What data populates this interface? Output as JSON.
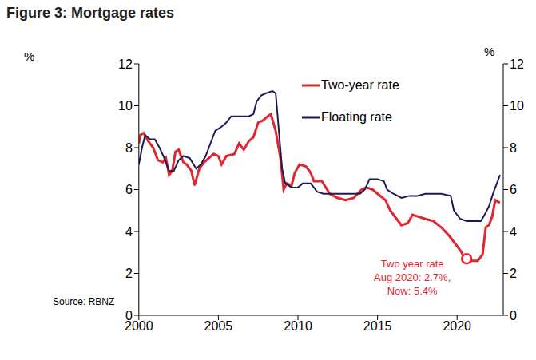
{
  "chart_data": {
    "type": "line",
    "title": "Figure 3: Mortgage rates",
    "y_label": "%",
    "y2_label": "%",
    "source": "Source: RBNZ",
    "xlim": [
      2000,
      2022.9
    ],
    "xticks": [
      2000,
      2005,
      2010,
      2015,
      2020
    ],
    "ylim": [
      0,
      12
    ],
    "yticks": [
      0,
      2,
      4,
      6,
      8,
      10,
      12
    ],
    "y2lim": [
      0,
      12
    ],
    "y2ticks": [
      0,
      2,
      4,
      6,
      8,
      10,
      12
    ],
    "legend": "upper right",
    "grid": false,
    "series": [
      {
        "name": "Two-year rate",
        "color": "#e0262e",
        "x": [
          2000.0,
          2000.1,
          2000.3,
          2000.6,
          2000.9,
          2001.2,
          2001.5,
          2001.7,
          2001.9,
          2002.1,
          2002.3,
          2002.5,
          2002.8,
          2003.0,
          2003.3,
          2003.5,
          2003.8,
          2004.1,
          2004.4,
          2004.7,
          2005.0,
          2005.2,
          2005.5,
          2006.0,
          2006.3,
          2006.6,
          2006.9,
          2007.2,
          2007.5,
          2007.8,
          2008.1,
          2008.3,
          2008.6,
          2008.9,
          2009.1,
          2009.3,
          2009.6,
          2009.8,
          2010.1,
          2010.5,
          2010.8,
          2011.0,
          2011.5,
          2012.0,
          2012.5,
          2013.0,
          2013.5,
          2014.0,
          2014.3,
          2014.7,
          2015.0,
          2015.5,
          2015.8,
          2016.2,
          2016.5,
          2016.9,
          2017.2,
          2017.6,
          2018.0,
          2018.5,
          2019.0,
          2019.5,
          2019.9,
          2020.2,
          2020.5,
          2020.9,
          2021.3,
          2021.6,
          2021.8,
          2022.0,
          2022.2,
          2022.4,
          2022.6,
          2022.7
        ],
        "values": [
          8.2,
          8.6,
          8.7,
          8.3,
          8.0,
          7.4,
          7.3,
          7.5,
          6.7,
          6.9,
          7.8,
          7.9,
          7.3,
          7.2,
          6.9,
          6.2,
          7.0,
          7.3,
          7.5,
          7.7,
          7.6,
          7.2,
          7.6,
          7.7,
          8.2,
          7.9,
          8.3,
          8.5,
          9.2,
          9.3,
          9.5,
          9.6,
          8.8,
          7.5,
          6.0,
          6.3,
          6.2,
          6.8,
          7.2,
          7.1,
          6.8,
          6.4,
          6.4,
          5.8,
          5.6,
          5.5,
          5.6,
          6.0,
          6.1,
          6.0,
          5.8,
          5.5,
          5.0,
          4.6,
          4.3,
          4.4,
          4.8,
          4.7,
          4.6,
          4.5,
          4.2,
          3.8,
          3.4,
          3.1,
          2.7,
          2.6,
          2.6,
          2.9,
          4.2,
          4.3,
          4.7,
          5.5,
          5.4,
          5.4
        ]
      },
      {
        "name": "Floating rate",
        "color": "#1c1c54",
        "x": [
          2000.0,
          2000.2,
          2000.4,
          2000.7,
          2001.0,
          2001.3,
          2001.6,
          2001.9,
          2002.2,
          2002.5,
          2002.8,
          2003.2,
          2003.6,
          2003.9,
          2004.2,
          2004.5,
          2004.8,
          2005.2,
          2005.5,
          2005.8,
          2006.3,
          2006.9,
          2007.2,
          2007.4,
          2007.7,
          2008.0,
          2008.4,
          2008.6,
          2008.8,
          2009.0,
          2009.2,
          2009.6,
          2010.0,
          2010.3,
          2010.8,
          2011.2,
          2011.6,
          2012.5,
          2013.5,
          2013.9,
          2014.2,
          2014.5,
          2015.0,
          2015.4,
          2015.6,
          2016.0,
          2016.5,
          2017.0,
          2017.5,
          2018.0,
          2019.0,
          2019.6,
          2019.8,
          2020.2,
          2020.6,
          2021.0,
          2021.5,
          2021.8,
          2022.0,
          2022.3,
          2022.5,
          2022.7
        ],
        "values": [
          7.2,
          8.0,
          8.6,
          8.4,
          8.4,
          8.0,
          7.5,
          6.9,
          6.9,
          7.4,
          7.6,
          7.5,
          7.0,
          7.2,
          7.6,
          8.2,
          8.8,
          9.0,
          9.2,
          9.5,
          9.5,
          9.5,
          9.6,
          10.2,
          10.5,
          10.6,
          10.7,
          10.6,
          8.8,
          7.0,
          6.3,
          6.1,
          6.1,
          6.3,
          6.3,
          5.9,
          5.8,
          5.8,
          5.8,
          5.8,
          6.0,
          6.5,
          6.5,
          6.4,
          6.0,
          5.8,
          5.6,
          5.7,
          5.7,
          5.8,
          5.8,
          5.7,
          5.0,
          4.6,
          4.5,
          4.5,
          4.5,
          4.9,
          5.2,
          5.9,
          6.3,
          6.7
        ]
      }
    ],
    "annotations": [
      {
        "text": "Two year rate\nAug 2020: 2.7%,\nNow: 5.4%",
        "x": 2020.6,
        "y": 2.7,
        "color": "#e0262e",
        "marker": "circle"
      }
    ]
  }
}
